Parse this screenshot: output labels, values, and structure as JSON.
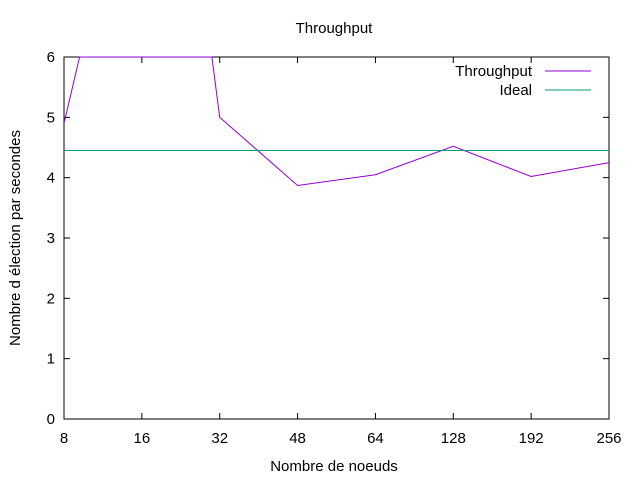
{
  "chart_data": {
    "type": "line",
    "title": "Throughput",
    "xlabel": "Nombre de noeuds",
    "ylabel": "Nombre d élection par secondes",
    "x_categories": [
      "8",
      "16",
      "32",
      "48",
      "64",
      "128",
      "192",
      "256"
    ],
    "ylim": [
      0,
      6
    ],
    "yticks": [
      "0",
      "1",
      "2",
      "3",
      "4",
      "5",
      "6"
    ],
    "grid": false,
    "legend_position": "top-right",
    "series": [
      {
        "name": "Throughput",
        "color": "#9400d3",
        "points": [
          {
            "x": 0,
            "y": 4.9
          },
          {
            "x": 0.2,
            "y": 6.0
          },
          {
            "x": 1.9,
            "y": 6.0
          },
          {
            "x": 2,
            "y": 5.0
          },
          {
            "x": 3,
            "y": 3.87
          },
          {
            "x": 4,
            "y": 4.05
          },
          {
            "x": 5,
            "y": 4.52
          },
          {
            "x": 6,
            "y": 4.02
          },
          {
            "x": 7,
            "y": 4.25
          }
        ]
      },
      {
        "name": "Ideal",
        "color": "#009e73",
        "points": [
          {
            "x": 0,
            "y": 4.45
          },
          {
            "x": 7,
            "y": 4.45
          }
        ]
      }
    ]
  }
}
